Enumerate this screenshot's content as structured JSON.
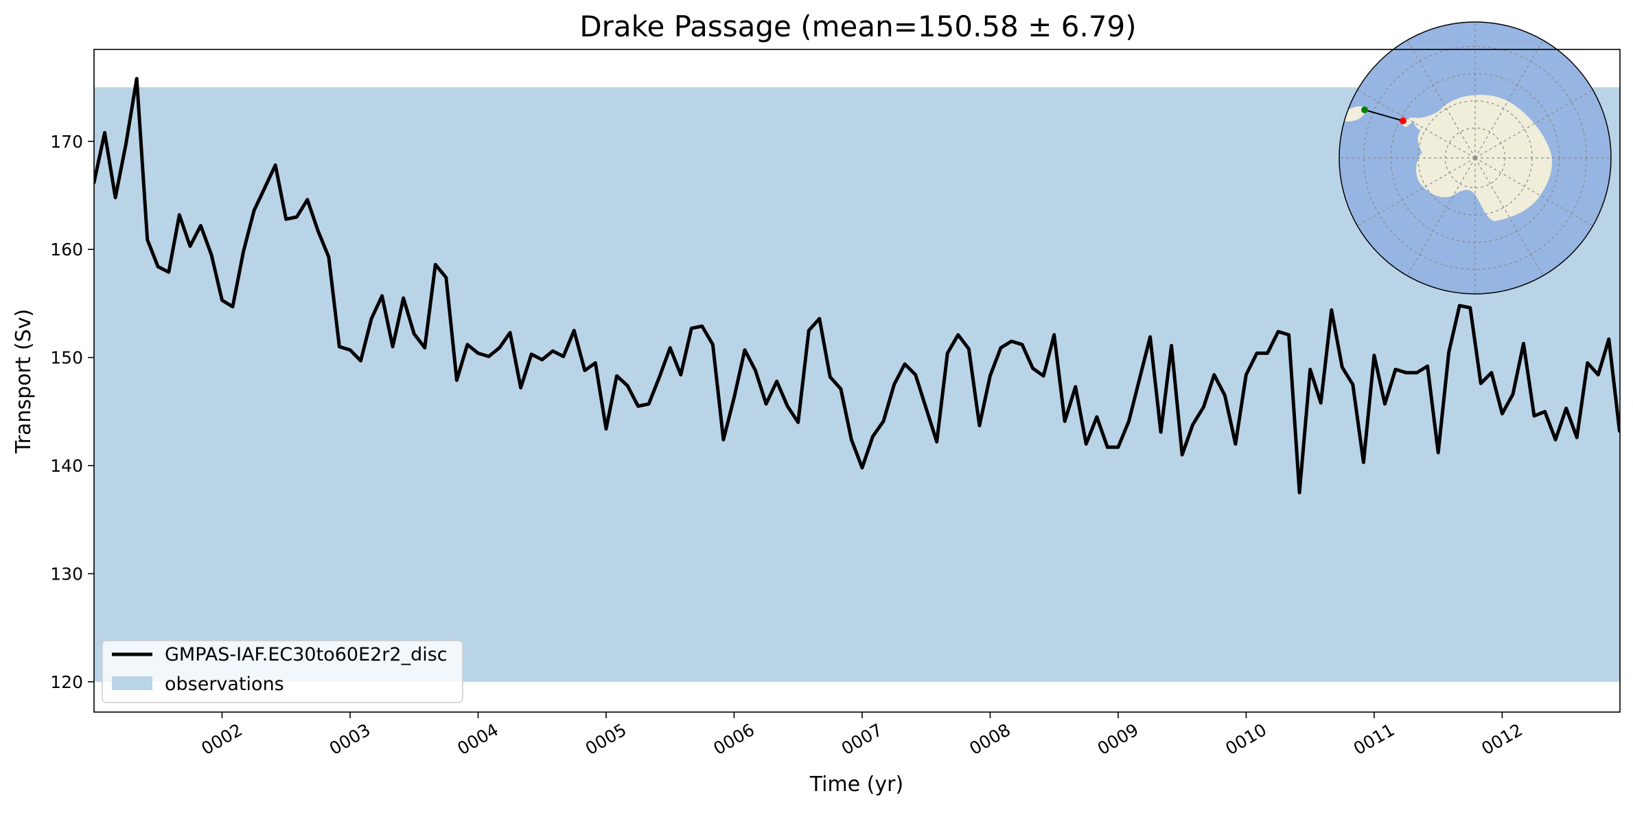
{
  "chart_data": {
    "type": "line",
    "title": "Drake Passage (mean=150.58 ± 6.79)",
    "xlabel": "Time (yr)",
    "ylabel": "Transport (Sv)",
    "xlim": [
      1.0,
      12.92
    ],
    "ylim": [
      117.2,
      178.5
    ],
    "x_ticks": [
      2,
      3,
      4,
      5,
      6,
      7,
      8,
      9,
      10,
      11,
      12
    ],
    "x_tick_labels": [
      "0002",
      "0003",
      "0004",
      "0005",
      "0006",
      "0007",
      "0008",
      "0009",
      "0010",
      "0011",
      "0012"
    ],
    "y_ticks": [
      120,
      130,
      140,
      150,
      160,
      170
    ],
    "y_tick_labels": [
      "120",
      "130",
      "140",
      "150",
      "160",
      "170"
    ],
    "grid": false,
    "legend_position": "lower-left",
    "observations_band": {
      "name": "observations",
      "ymin": 120,
      "ymax": 175,
      "color": "#bad4e7"
    },
    "series": [
      {
        "name": "GMPAS-IAF.EC30to60E2r2_disc",
        "color": "#000000",
        "x_start": 1.0,
        "x_step": 0.083333,
        "values": [
          166.2,
          170.8,
          164.8,
          169.8,
          175.8,
          160.9,
          158.4,
          157.9,
          163.2,
          160.3,
          162.2,
          159.5,
          155.3,
          154.7,
          159.8,
          163.6,
          165.7,
          167.8,
          162.8,
          163.0,
          164.6,
          161.7,
          159.3,
          151.0,
          150.7,
          149.7,
          153.6,
          155.7,
          151.0,
          155.5,
          152.2,
          150.9,
          158.6,
          157.4,
          147.9,
          151.2,
          150.4,
          150.1,
          150.9,
          152.3,
          147.2,
          150.3,
          149.8,
          150.6,
          150.1,
          152.5,
          148.8,
          149.5,
          143.4,
          148.3,
          147.4,
          145.5,
          145.7,
          148.2,
          150.9,
          148.4,
          152.7,
          152.9,
          151.2,
          142.4,
          146.3,
          150.7,
          148.8,
          145.7,
          147.8,
          145.5,
          144.0,
          152.5,
          153.6,
          148.2,
          147.1,
          142.4,
          139.8,
          142.7,
          144.1,
          147.5,
          149.4,
          148.4,
          145.3,
          142.2,
          150.4,
          152.1,
          150.8,
          143.7,
          148.3,
          150.9,
          151.5,
          151.2,
          149.0,
          148.3,
          152.1,
          144.1,
          147.3,
          142.0,
          144.5,
          141.7,
          141.7,
          144.1,
          148.0,
          151.9,
          143.1,
          151.1,
          141.0,
          143.8,
          145.4,
          148.4,
          146.5,
          142.0,
          148.4,
          150.4,
          150.4,
          152.4,
          152.1,
          137.5,
          148.9,
          145.8,
          154.4,
          149.1,
          147.5,
          140.3,
          150.2,
          145.7,
          148.9,
          148.6,
          148.6,
          149.2,
          141.2,
          150.5,
          154.8,
          154.6,
          147.6,
          148.6,
          144.8,
          146.6,
          151.3,
          144.6,
          145.0,
          142.4,
          145.3,
          142.6,
          149.5,
          148.4,
          151.7,
          143.2
        ]
      }
    ],
    "inset_map": {
      "projection": "south-polar-stereographic",
      "ocean_color": "#97b5e2",
      "land_color": "#f0eeda",
      "section_start_color": "#008000",
      "section_end_color": "#ff0000"
    }
  }
}
